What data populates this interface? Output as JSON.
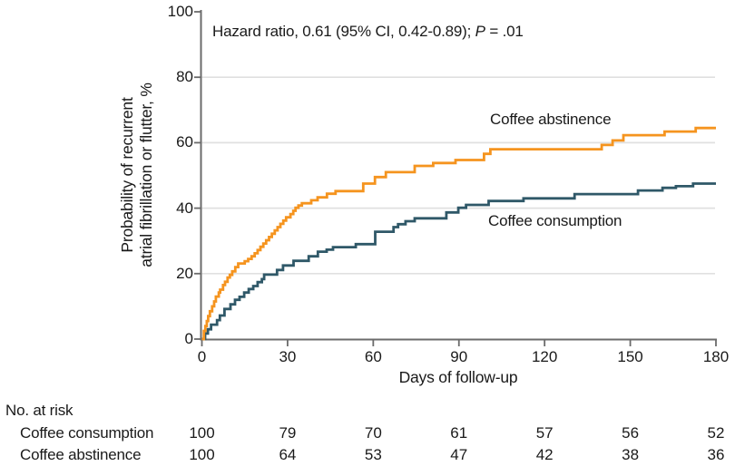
{
  "chart_data": {
    "type": "line",
    "variant": "kaplan-meier-step",
    "title": "",
    "annotation_parts": {
      "prefix": "Hazard ratio, 0.61 (95% CI, 0.42-0.89); ",
      "p": "P",
      "suffix": " = .01"
    },
    "xlabel": "Days of follow-up",
    "ylabel_lines": [
      "Probability of recurrent",
      "atrial fibrillation or flutter, %"
    ],
    "xlim": [
      0,
      180
    ],
    "ylim": [
      0,
      100
    ],
    "x_ticks": [
      0,
      30,
      60,
      90,
      120,
      150,
      180
    ],
    "y_ticks": [
      0,
      20,
      40,
      60,
      80,
      100
    ],
    "grid": "horizontal-light",
    "legend_position": "inline-curve-labels",
    "colors": {
      "axis": "#6b6b6b",
      "grid": "#e0e0e0",
      "text": "#1a1a1a"
    },
    "series": [
      {
        "name": "Coffee consumption",
        "color": "#2f5868",
        "steps": [
          [
            0,
            0
          ],
          [
            1.1,
            1.7
          ],
          [
            2.1,
            3
          ],
          [
            3.2,
            4.4
          ],
          [
            5.3,
            5.8
          ],
          [
            6.3,
            7.2
          ],
          [
            7.9,
            9.2
          ],
          [
            10,
            10.6
          ],
          [
            11.6,
            12
          ],
          [
            13.2,
            12.9
          ],
          [
            14.8,
            14.2
          ],
          [
            16.4,
            15.3
          ],
          [
            18,
            16.2
          ],
          [
            19.5,
            17.4
          ],
          [
            21,
            18.3
          ],
          [
            21.8,
            19.7
          ],
          [
            26.3,
            21.1
          ],
          [
            28.4,
            22.5
          ],
          [
            32.1,
            23.9
          ],
          [
            37.4,
            25.3
          ],
          [
            40.6,
            26.7
          ],
          [
            43.7,
            27.3
          ],
          [
            45.9,
            28.1
          ],
          [
            53.9,
            29
          ],
          [
            60.7,
            32.8
          ],
          [
            67.1,
            34.2
          ],
          [
            68.7,
            35.1
          ],
          [
            71.3,
            36
          ],
          [
            74.5,
            36.9
          ],
          [
            85.6,
            38.7
          ],
          [
            89.8,
            40.1
          ],
          [
            92.5,
            41
          ],
          [
            100.4,
            42.2
          ],
          [
            112.6,
            43
          ],
          [
            130.5,
            44.3
          ],
          [
            152.7,
            45.4
          ],
          [
            161.3,
            46.2
          ],
          [
            166,
            46.7
          ],
          [
            172,
            47.5
          ],
          [
            180,
            47.5
          ]
        ]
      },
      {
        "name": "Coffee abstinence",
        "color": "#f5941f",
        "steps": [
          [
            0,
            0
          ],
          [
            0.7,
            2.5
          ],
          [
            1.2,
            4
          ],
          [
            1.7,
            5.5
          ],
          [
            2.2,
            7
          ],
          [
            2.8,
            8.5
          ],
          [
            3.6,
            10
          ],
          [
            4.3,
            11.5
          ],
          [
            4.9,
            13
          ],
          [
            5.9,
            14.2
          ],
          [
            6.4,
            15.1
          ],
          [
            7.4,
            16.5
          ],
          [
            8.1,
            17.5
          ],
          [
            9,
            18.8
          ],
          [
            9.8,
            19.6
          ],
          [
            10.6,
            20.7
          ],
          [
            11.7,
            22
          ],
          [
            12.7,
            23.1
          ],
          [
            15,
            23.8
          ],
          [
            16.2,
            24.5
          ],
          [
            17.4,
            25.3
          ],
          [
            18.5,
            26.2
          ],
          [
            19.5,
            27.2
          ],
          [
            20.5,
            28.2
          ],
          [
            21.5,
            29.2
          ],
          [
            22.5,
            30.2
          ],
          [
            23.5,
            31.2
          ],
          [
            24.5,
            32.2
          ],
          [
            25.5,
            33.2
          ],
          [
            26.5,
            34.2
          ],
          [
            27.5,
            35.2
          ],
          [
            28.5,
            36.2
          ],
          [
            29.5,
            37.2
          ],
          [
            31,
            38.2
          ],
          [
            32,
            39.2
          ],
          [
            32.8,
            40.1
          ],
          [
            33.8,
            40.8
          ],
          [
            35,
            41.5
          ],
          [
            38.3,
            42.4
          ],
          [
            40.5,
            43.3
          ],
          [
            43.8,
            44.4
          ],
          [
            46.8,
            45.2
          ],
          [
            56.5,
            47.5
          ],
          [
            60.6,
            49.5
          ],
          [
            64.4,
            51
          ],
          [
            74.5,
            52.9
          ],
          [
            81,
            53.8
          ],
          [
            88.8,
            54.7
          ],
          [
            98.8,
            56.6
          ],
          [
            101,
            58
          ],
          [
            140,
            59.3
          ],
          [
            143.8,
            60.7
          ],
          [
            147.6,
            62.3
          ],
          [
            162,
            63.4
          ],
          [
            172.9,
            64.5
          ],
          [
            180,
            64.5
          ]
        ]
      }
    ],
    "risk_table": {
      "title": "No. at risk",
      "rows": [
        {
          "label": "Coffee consumption",
          "counts": [
            100,
            79,
            70,
            61,
            57,
            56,
            52
          ]
        },
        {
          "label": "Coffee abstinence",
          "counts": [
            100,
            64,
            53,
            47,
            42,
            38,
            36
          ]
        }
      ]
    }
  }
}
